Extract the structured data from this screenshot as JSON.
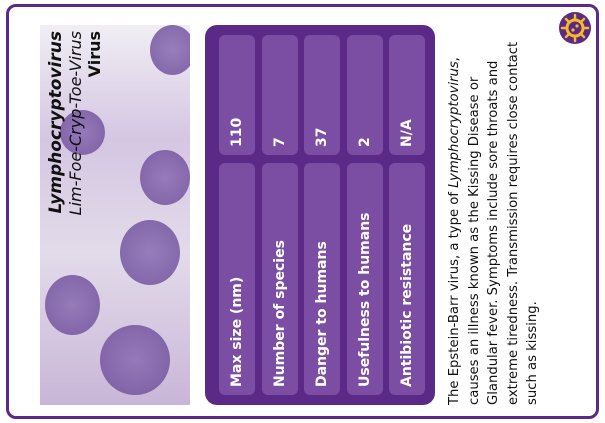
{
  "card": {
    "name": "Lymphocryptovirus",
    "pronunciation": "Lim-Foe-Cryp-Toe-Virus",
    "category": "Virus"
  },
  "stats": {
    "rows": [
      {
        "label": "Max size (nm)",
        "value": 110
      },
      {
        "label": "Number of species",
        "value": 7
      },
      {
        "label": "Danger to humans",
        "value": 37
      },
      {
        "label": "Usefulness to humans",
        "value": 2
      },
      {
        "label": "Antibiotic resistance",
        "value": "N/A"
      }
    ]
  },
  "description": {
    "before": "The Epstein-Barr virus, a type of ",
    "italic": "Lymphocryptovirus",
    "after": ", causes an illness known as the Kissing Disease or Glandular fever. Symptoms include sore throats and extreme tiredness. Transmission requires close contact such as kissing."
  }
}
